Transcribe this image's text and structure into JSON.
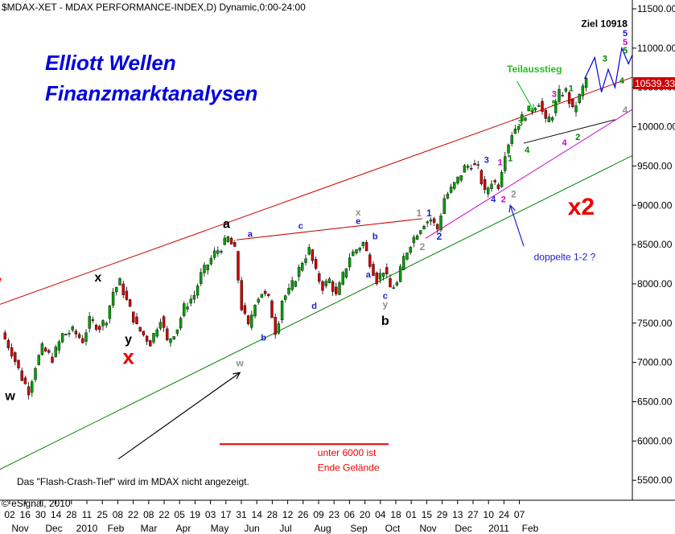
{
  "chart_data": {
    "type": "candlestick",
    "title": "$MDAX-XET - MDAX PERFORMANCE-INDEX,D) Dynamic,0:00-24:00",
    "heading": [
      "Elliott Wellen",
      "Finanzmarktanalysen"
    ],
    "ylim": [
      5300,
      11650
    ],
    "yticks": [
      5500,
      6000,
      6500,
      7000,
      7500,
      8000,
      8500,
      9000,
      9500,
      10000,
      10500,
      11000,
      11500
    ],
    "ytick_labels": [
      "5500.00",
      "6000.00",
      "6500.00",
      "7000.00",
      "7500.00",
      "8000.00",
      "8500.00",
      "9000.00",
      "9500.00",
      "10000.00",
      "10500.00",
      "11000.00",
      "11500.00"
    ],
    "last_price": "10539.33",
    "last_value": 10539,
    "x_ticks": [
      "02",
      "16",
      "30",
      "14",
      "28",
      "11",
      "25",
      "08",
      "22",
      "08",
      "22",
      "05",
      "19",
      "03",
      "17",
      "31",
      "14",
      "28",
      "12",
      "26",
      "09",
      "23",
      "06",
      "20",
      "04",
      "18",
      "01",
      "15",
      "29",
      "13",
      "27",
      "10",
      "24",
      "07"
    ],
    "months": [
      "Nov",
      "Dec",
      "2010",
      "Feb",
      "Mar",
      "Apr",
      "May",
      "Jun",
      "Jul",
      "Aug",
      "Sep",
      "Oct",
      "Nov",
      "Dec",
      "2011",
      "Feb"
    ],
    "price_path": [
      [
        0,
        7380
      ],
      [
        3,
        7130
      ],
      [
        6,
        6800
      ],
      [
        8,
        6640
      ],
      [
        10,
        6960
      ],
      [
        12,
        7180
      ],
      [
        15,
        7050
      ],
      [
        18,
        7350
      ],
      [
        21,
        7400
      ],
      [
        24,
        7280
      ],
      [
        26,
        7530
      ],
      [
        29,
        7450
      ],
      [
        31,
        7560
      ],
      [
        33,
        7900
      ],
      [
        35,
        8020
      ],
      [
        37,
        7780
      ],
      [
        40,
        7450
      ],
      [
        42,
        7350
      ],
      [
        44,
        7250
      ],
      [
        47,
        7570
      ],
      [
        49,
        7260
      ],
      [
        52,
        7440
      ],
      [
        54,
        7700
      ],
      [
        57,
        7860
      ],
      [
        59,
        8110
      ],
      [
        61,
        8250
      ],
      [
        63,
        8390
      ],
      [
        65,
        8470
      ],
      [
        67,
        8580
      ],
      [
        69,
        8420
      ],
      [
        71,
        7700
      ],
      [
        73,
        7450
      ],
      [
        75,
        7780
      ],
      [
        77,
        7890
      ],
      [
        79,
        7800
      ],
      [
        81,
        7400
      ],
      [
        82,
        7550
      ],
      [
        83,
        7800
      ],
      [
        85,
        7900
      ],
      [
        87,
        8080
      ],
      [
        89,
        8290
      ],
      [
        91,
        8430
      ],
      [
        93,
        8140
      ],
      [
        95,
        7960
      ],
      [
        97,
        8050
      ],
      [
        99,
        7840
      ],
      [
        101,
        8100
      ],
      [
        103,
        8350
      ],
      [
        105,
        8440
      ],
      [
        107,
        8520
      ],
      [
        109,
        8280
      ],
      [
        111,
        8050
      ],
      [
        113,
        8180
      ],
      [
        115,
        7950
      ],
      [
        117,
        8000
      ],
      [
        119,
        8330
      ],
      [
        121,
        8520
      ],
      [
        123,
        8660
      ],
      [
        125,
        8780
      ],
      [
        127,
        8820
      ],
      [
        129,
        8700
      ],
      [
        131,
        9090
      ],
      [
        133,
        9200
      ],
      [
        135,
        9330
      ],
      [
        137,
        9480
      ],
      [
        139,
        9520
      ],
      [
        141,
        9460
      ],
      [
        143,
        9150
      ],
      [
        145,
        9310
      ],
      [
        147,
        9260
      ],
      [
        149,
        9680
      ],
      [
        151,
        9920
      ],
      [
        153,
        10050
      ],
      [
        155,
        10170
      ],
      [
        157,
        10240
      ],
      [
        159,
        10320
      ],
      [
        161,
        10050
      ],
      [
        163,
        10160
      ],
      [
        165,
        10420
      ],
      [
        167,
        10450
      ],
      [
        169,
        10200
      ],
      [
        171,
        10380
      ],
      [
        173,
        10610
      ]
    ],
    "projection": [
      [
        173,
        10610
      ],
      [
        176,
        10880
      ],
      [
        178,
        10440
      ],
      [
        180,
        10730
      ],
      [
        182,
        10500
      ],
      [
        184,
        11000
      ],
      [
        186,
        10800
      ],
      [
        188,
        11000
      ],
      [
        190,
        10690
      ]
    ],
    "lines": [
      {
        "name": "Oberer Trendkanal",
        "color": "#cc0000",
        "from": [
          0,
          7740
        ],
        "to": [
          195,
          10750
        ]
      },
      {
        "name": "Mittlere Linie",
        "color": "#cc00cc",
        "from": [
          126,
          8580
        ],
        "to": [
          195,
          10430
        ]
      },
      {
        "name": "Unterer Trendkanal",
        "color": "#008000",
        "from": [
          0,
          5640
        ],
        "to": [
          195,
          9800
        ]
      },
      {
        "name": "Verbindung c-e",
        "color": "#cc0000",
        "from": [
          70,
          8560
        ],
        "to": [
          125,
          8830
        ]
      },
      {
        "name": "Dreieck",
        "color": "#000000",
        "from": [
          155,
          9790
        ],
        "to": [
          182,
          10090
        ]
      },
      {
        "name": "Marke 6000",
        "color": "#ee0000",
        "from": [
          65,
          5960
        ],
        "to": [
          115,
          5960
        ]
      }
    ],
    "wave_labels": [
      {
        "text": "w",
        "x": 3,
        "y": 6520,
        "color": "#000000",
        "size": 16
      },
      {
        "text": "x",
        "x": 29,
        "y": 8030,
        "color": "#000000",
        "size": 16
      },
      {
        "text": "x",
        "x": 38,
        "y": 6980,
        "color": "#ee0000",
        "size": 26
      },
      {
        "text": "y",
        "x": 38,
        "y": 7240,
        "color": "#000000",
        "size": 16
      },
      {
        "text": "a",
        "x": 67,
        "y": 8710,
        "color": "#000000",
        "size": 16
      },
      {
        "text": "a",
        "x": 74,
        "y": 8600,
        "color": "#2020c8",
        "size": 11
      },
      {
        "text": "b",
        "x": 78,
        "y": 7280,
        "color": "#2020c8",
        "size": 11
      },
      {
        "text": "w",
        "x": 71,
        "y": 6950,
        "color": "#909090",
        "size": 12
      },
      {
        "text": "c",
        "x": 89,
        "y": 8700,
        "color": "#2020c8",
        "size": 11
      },
      {
        "text": "d",
        "x": 93,
        "y": 7680,
        "color": "#2020c8",
        "size": 11
      },
      {
        "text": "x",
        "x": 106,
        "y": 8870,
        "color": "#909090",
        "size": 12
      },
      {
        "text": "e",
        "x": 106,
        "y": 8760,
        "color": "#2020c8",
        "size": 11
      },
      {
        "text": "b",
        "x": 111,
        "y": 8570,
        "color": "#2020c8",
        "size": 11
      },
      {
        "text": "a",
        "x": 109,
        "y": 8080,
        "color": "#2020c8",
        "size": 11
      },
      {
        "text": "c",
        "x": 114,
        "y": 7810,
        "color": "#2020c8",
        "size": 11
      },
      {
        "text": "y",
        "x": 114,
        "y": 7700,
        "color": "#909090",
        "size": 12
      },
      {
        "text": "b",
        "x": 114,
        "y": 7480,
        "color": "#000000",
        "size": 16
      },
      {
        "text": "1",
        "x": 124,
        "y": 8860,
        "color": "#909090",
        "size": 12
      },
      {
        "text": "1",
        "x": 127,
        "y": 8860,
        "color": "#2020c8",
        "size": 12
      },
      {
        "text": "2",
        "x": 125,
        "y": 8430,
        "color": "#909090",
        "size": 12
      },
      {
        "text": "2",
        "x": 130,
        "y": 8560,
        "color": "#2020c8",
        "size": 12
      },
      {
        "text": "3",
        "x": 144,
        "y": 9540,
        "color": "#2020c8",
        "size": 11
      },
      {
        "text": "1",
        "x": 148,
        "y": 9510,
        "color": "#cc00cc",
        "size": 11
      },
      {
        "text": "1",
        "x": 151,
        "y": 9560,
        "color": "#008000",
        "size": 11
      },
      {
        "text": "4",
        "x": 146,
        "y": 9040,
        "color": "#2020c8",
        "size": 11
      },
      {
        "text": "2",
        "x": 149,
        "y": 9040,
        "color": "#cc00cc",
        "size": 11
      },
      {
        "text": "2",
        "x": 152,
        "y": 9100,
        "color": "#909090",
        "size": 12
      },
      {
        "text": "3",
        "x": 154,
        "y": 10010,
        "color": "#008000",
        "size": 11
      },
      {
        "text": "4",
        "x": 156,
        "y": 9670,
        "color": "#008000",
        "size": 11
      },
      {
        "text": "5",
        "x": 164,
        "y": 10260,
        "color": "#008000",
        "size": 11
      },
      {
        "text": "3",
        "x": 164,
        "y": 10380,
        "color": "#cc00cc",
        "size": 11
      },
      {
        "text": "1",
        "x": 169,
        "y": 10450,
        "color": "#008000",
        "size": 11
      },
      {
        "text": "4",
        "x": 167,
        "y": 9760,
        "color": "#cc00cc",
        "size": 11
      },
      {
        "text": "2",
        "x": 171,
        "y": 9830,
        "color": "#008000",
        "size": 11
      },
      {
        "text": "3",
        "x": 179,
        "y": 10830,
        "color": "#008000",
        "size": 11
      },
      {
        "text": "4",
        "x": 184,
        "y": 10550,
        "color": "#008000",
        "size": 11
      },
      {
        "text": "3",
        "x": 185,
        "y": 11270,
        "color": "#909090",
        "size": 12
      },
      {
        "text": "5",
        "x": 185,
        "y": 11150,
        "color": "#2020c8",
        "size": 11
      },
      {
        "text": "5",
        "x": 185,
        "y": 11040,
        "color": "#cc00cc",
        "size": 11
      },
      {
        "text": "5",
        "x": 185,
        "y": 10930,
        "color": "#008000",
        "size": 11
      },
      {
        "text": "4",
        "x": 185,
        "y": 10170,
        "color": "#909090",
        "size": 12
      },
      {
        "text": "5",
        "x": 197,
        "y": 11030,
        "color": "#909090",
        "size": 12
      },
      {
        "text": "c",
        "x": 197,
        "y": 11170,
        "color": "#000000",
        "size": 16
      },
      {
        "text": "y",
        "x": 195,
        "y": 11370,
        "color": "#ee0000",
        "size": 28
      },
      {
        "text": "B",
        "x": 200,
        "y": 11370,
        "color": "#2020c8",
        "size": 26
      },
      {
        "text": "x2",
        "x": 172,
        "y": 8880,
        "color": "#ee0000",
        "size": 30
      },
      {
        "text": "y",
        "x": -1,
        "y": 7950,
        "color": "#ee0000",
        "size": 22
      }
    ],
    "annotations": [
      {
        "text": "Ziel 10918",
        "x": 172,
        "y": 11270,
        "color": "#000000",
        "size": 12,
        "bold": true
      },
      {
        "text": "Teilausstieg",
        "x": 150,
        "y": 10690,
        "color": "#20c020",
        "size": 14,
        "bold": true
      },
      {
        "text": "doppelte 1-2 ?",
        "x": 158,
        "y": 8300,
        "color": "#2020c8",
        "size": 12,
        "bold": false
      },
      {
        "text": "unter 6000 ist",
        "x": 94,
        "y": 5810,
        "color": "#ee0000",
        "size": 14,
        "bold": false
      },
      {
        "text": "Ende Gelände",
        "x": 94,
        "y": 5620,
        "color": "#ee0000",
        "size": 14,
        "bold": false
      },
      {
        "text": "Das \"Flash-Crash-Tief\" wird im MDAX nicht angezeigt.",
        "x": 5,
        "y": 5440,
        "color": "#000000",
        "size": 12,
        "bold": false
      }
    ],
    "arrows": [
      {
        "color": "#20c020",
        "from": [
          153,
          10580
        ],
        "to": [
          158,
          10200
        ]
      },
      {
        "color": "#2020c8",
        "from": [
          155,
          8480
        ],
        "to": [
          151,
          9000
        ]
      },
      {
        "color": "#000000",
        "from": [
          35,
          5770
        ],
        "to": [
          71,
          6870
        ]
      }
    ],
    "footer": "© eSignal, 2010"
  }
}
